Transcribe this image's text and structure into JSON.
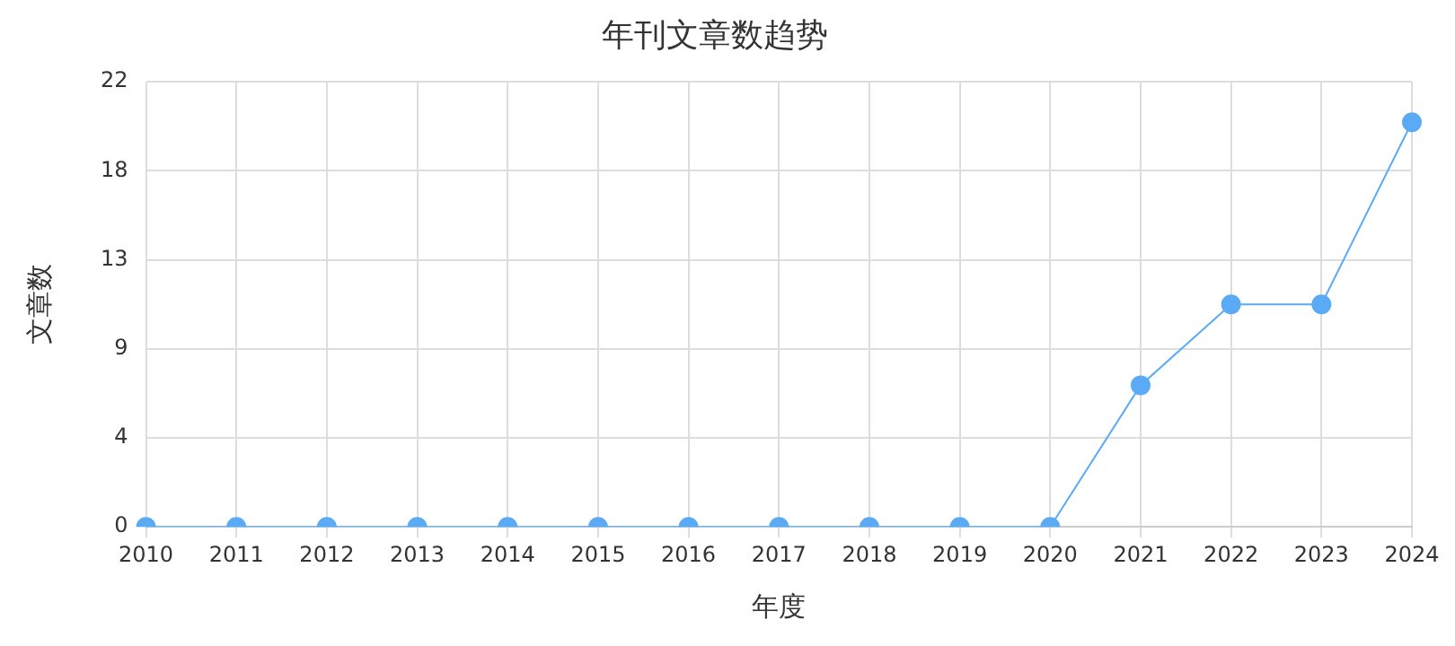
{
  "chart_data": {
    "type": "line",
    "title": "年刊文章数趋势",
    "xlabel": "年度",
    "ylabel": "文章数",
    "categories": [
      "2010",
      "2011",
      "2012",
      "2013",
      "2014",
      "2015",
      "2016",
      "2017",
      "2018",
      "2019",
      "2020",
      "2021",
      "2022",
      "2023",
      "2024"
    ],
    "series": [
      {
        "color": "#5aaaf5",
        "values": [
          0,
          0,
          0,
          0,
          0,
          0,
          0,
          0,
          0,
          0,
          0,
          7,
          11,
          11,
          20
        ]
      }
    ],
    "ylim": [
      0,
      22
    ],
    "yticks": [
      0,
      {
        "value": 4.4,
        "label": "4"
      },
      {
        "value": 8.8,
        "label": "9"
      },
      {
        "value": 13.2,
        "label": "13"
      },
      {
        "value": 17.6,
        "label": "18"
      },
      22
    ],
    "grid": true,
    "legend": false,
    "marker": "circle",
    "line_style": "solid"
  }
}
